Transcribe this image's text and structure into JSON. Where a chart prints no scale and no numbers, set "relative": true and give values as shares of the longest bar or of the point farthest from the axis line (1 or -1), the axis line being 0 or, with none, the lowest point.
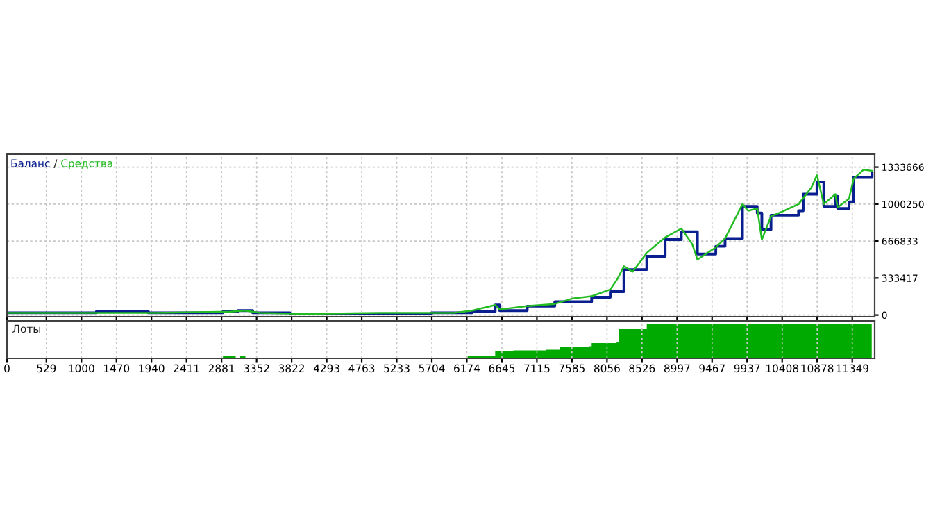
{
  "chart_data": [
    {
      "type": "line",
      "xlim": [
        0,
        11650
      ],
      "ylim": [
        -15000,
        1450000
      ],
      "yticks": [
        0,
        333417,
        666833,
        1000250,
        1333666
      ],
      "xticks": [
        0,
        529,
        1000,
        1470,
        1940,
        2411,
        2881,
        3352,
        3822,
        4293,
        4763,
        5233,
        5704,
        6174,
        6645,
        7115,
        7585,
        8056,
        8526,
        8997,
        9467,
        9937,
        10408,
        10878,
        11349
      ],
      "tick_labels": "y",
      "grid": true,
      "legend": "top left",
      "annotations": [
        "/"
      ],
      "series": [
        {
          "name": "Баланс",
          "type": "step",
          "color": "#0a1f8f",
          "x": [
            0,
            600,
            1200,
            1900,
            2500,
            2900,
            3100,
            3300,
            3500,
            3800,
            4300,
            5000,
            5700,
            6000,
            6245,
            6555,
            6615,
            6985,
            7355,
            7850,
            8100,
            8283,
            8590,
            8590,
            8837,
            9054,
            9270,
            9517,
            9641,
            9875,
            9875,
            10073,
            10135,
            10258,
            10628,
            10690,
            10875,
            10967,
            11122,
            11152,
            11306,
            11368,
            11615
          ],
          "values": [
            20000,
            20000,
            30000,
            20000,
            20000,
            30000,
            40000,
            20000,
            20000,
            10000,
            10000,
            10000,
            20000,
            20000,
            30000,
            90000,
            40000,
            80000,
            120000,
            160000,
            210000,
            410000,
            410000,
            530000,
            680000,
            750000,
            550000,
            620000,
            690000,
            690000,
            980000,
            920000,
            770000,
            900000,
            940000,
            1090000,
            1200000,
            980000,
            1070000,
            960000,
            1020000,
            1240000,
            1280000
          ]
        },
        {
          "name": "Средства",
          "type": "line",
          "color": "#22bb22",
          "x": [
            0,
            1000,
            2000,
            3000,
            3200,
            3400,
            4000,
            5000,
            6000,
            6245,
            6555,
            6615,
            6985,
            7355,
            7600,
            7850,
            8100,
            8200,
            8283,
            8400,
            8590,
            8837,
            9054,
            9200,
            9270,
            9517,
            9641,
            9800,
            9875,
            9950,
            10073,
            10135,
            10258,
            10400,
            10628,
            10800,
            10875,
            10967,
            11122,
            11152,
            11306,
            11368,
            11500,
            11615
          ],
          "values": [
            20000,
            20000,
            20000,
            30000,
            40000,
            20000,
            10000,
            20000,
            20000,
            40000,
            90000,
            50000,
            80000,
            100000,
            150000,
            170000,
            230000,
            330000,
            440000,
            390000,
            560000,
            700000,
            780000,
            640000,
            500000,
            610000,
            690000,
            900000,
            1000000,
            940000,
            960000,
            680000,
            890000,
            930000,
            1000000,
            1150000,
            1260000,
            1000000,
            1090000,
            970000,
            1050000,
            1230000,
            1310000,
            1300000
          ]
        }
      ]
    },
    {
      "type": "area",
      "relative": true,
      "xlim": [
        0,
        11650
      ],
      "xticks": [
        0,
        529,
        1000,
        1470,
        1940,
        2411,
        2881,
        3352,
        3822,
        4293,
        4763,
        5233,
        5704,
        6174,
        6645,
        7115,
        7585,
        8056,
        8526,
        8997,
        9467,
        9937,
        10408,
        10878,
        11349
      ],
      "tick_labels": "x",
      "grid": "x",
      "series": [
        {
          "name": "Лоты",
          "color": "#00aa00",
          "x": [
            0,
            2899,
            2900,
            3070,
            3071,
            3130,
            3131,
            3200,
            3201,
            6185,
            6555,
            6800,
            7240,
            7425,
            7815,
            7850,
            8185,
            8220,
            8590,
            11610
          ],
          "values": [
            0,
            0,
            0.08,
            0.08,
            0,
            0,
            0.08,
            0.08,
            0,
            0.07,
            0.21,
            0.23,
            0.25,
            0.33,
            0.35,
            0.44,
            0.46,
            0.84,
            1,
            1
          ]
        }
      ]
    }
  ]
}
